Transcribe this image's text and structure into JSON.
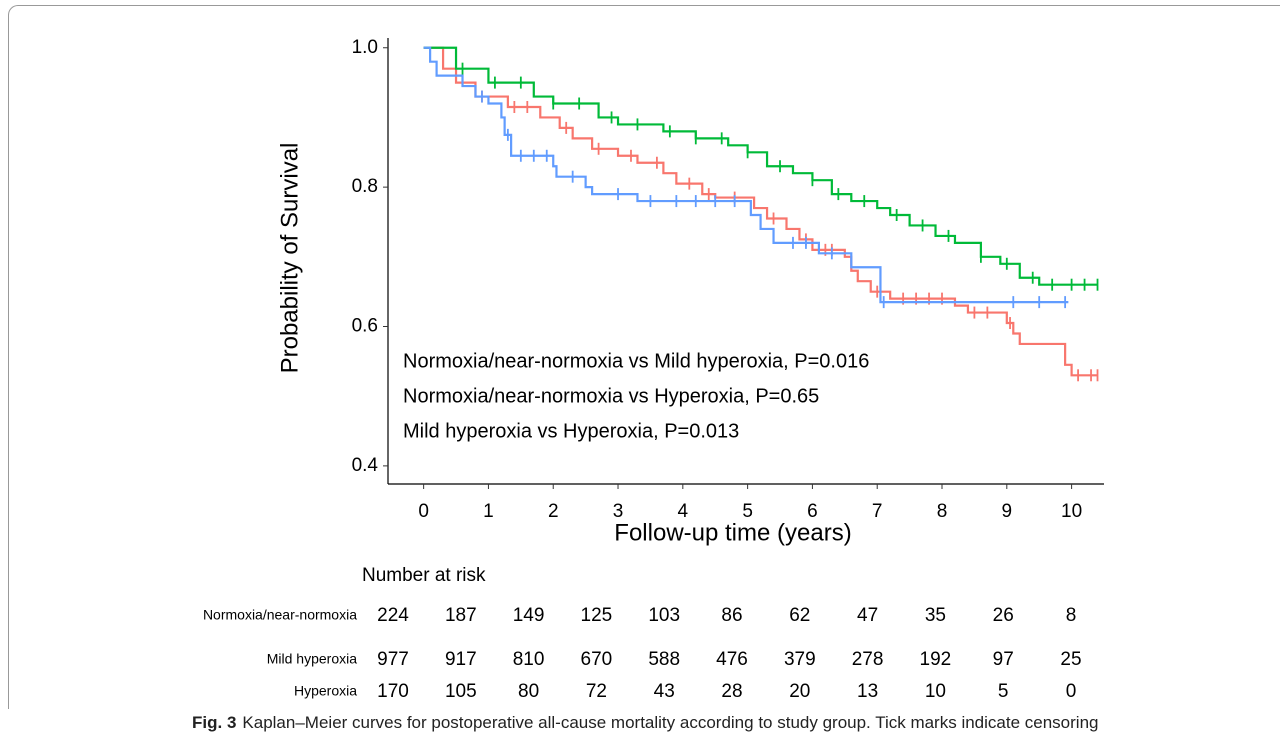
{
  "chart_data": {
    "type": "km",
    "ylabel": "Probability of Survival",
    "xlabel": "Follow-up time (years)",
    "xlim": [
      -0.55,
      10.5
    ],
    "ylim": [
      0.374,
      1.014
    ],
    "xticks": [
      0,
      1,
      2,
      3,
      4,
      5,
      6,
      7,
      8,
      9,
      10
    ],
    "yticks": [
      {
        "value": 1,
        "label": "1.0"
      },
      0.8,
      0.6,
      0.4
    ],
    "annotations": [
      "Normoxia/near-normoxia vs Mild hyperoxia, P=0.016",
      "Normoxia/near-normoxia vs Hyperoxia, P=0.65",
      "Mild hyperoxia vs Hyperoxia, P=0.013"
    ],
    "risk_title": "Number at risk",
    "series": [
      {
        "name": "Normoxia/near-normoxia",
        "color": "#F8766D",
        "x": [
          0,
          0.3,
          0.5,
          0.8,
          1.3,
          1.8,
          2.1,
          2.3,
          2.6,
          3.0,
          3.3,
          3.7,
          3.9,
          4.3,
          4.5,
          5.1,
          5.3,
          5.6,
          5.8,
          6.0,
          6.5,
          6.6,
          6.7,
          6.9,
          7.2,
          8.2,
          8.4,
          9.0,
          9.1,
          9.2,
          9.9,
          10.0,
          10.4
        ],
        "values": [
          1,
          0.97,
          0.95,
          0.93,
          0.915,
          0.9,
          0.885,
          0.87,
          0.855,
          0.845,
          0.835,
          0.82,
          0.805,
          0.79,
          0.785,
          0.77,
          0.755,
          0.74,
          0.725,
          0.71,
          0.7,
          0.68,
          0.665,
          0.65,
          0.64,
          0.63,
          0.62,
          0.605,
          0.59,
          0.575,
          0.545,
          0.53,
          0.53
        ],
        "censored": [
          0.9,
          1.4,
          1.6,
          2.2,
          2.7,
          3.2,
          3.6,
          4.1,
          4.4,
          4.8,
          5.4,
          5.9,
          6.2,
          6.3,
          7.0,
          7.4,
          7.6,
          7.8,
          8.0,
          8.5,
          8.7,
          9.05,
          10.1,
          10.3,
          10.4
        ],
        "at_risk": [
          224,
          187,
          149,
          125,
          103,
          86,
          62,
          47,
          35,
          26,
          8
        ]
      },
      {
        "name": "Mild hyperoxia",
        "color": "#00BA38",
        "x": [
          0,
          0.5,
          1.0,
          1.7,
          2.0,
          2.7,
          3.0,
          3.7,
          4.2,
          4.7,
          5.0,
          5.3,
          5.7,
          6.0,
          6.3,
          6.6,
          7.0,
          7.2,
          7.5,
          7.9,
          8.2,
          8.6,
          8.9,
          9.2,
          9.5,
          10.4
        ],
        "values": [
          1,
          0.97,
          0.95,
          0.93,
          0.92,
          0.9,
          0.89,
          0.88,
          0.87,
          0.86,
          0.85,
          0.83,
          0.82,
          0.81,
          0.79,
          0.78,
          0.77,
          0.76,
          0.745,
          0.73,
          0.72,
          0.7,
          0.69,
          0.67,
          0.66,
          0.66
        ],
        "censored": [
          0.6,
          1.1,
          1.5,
          2.0,
          2.4,
          2.9,
          3.3,
          3.8,
          4.2,
          4.6,
          5.0,
          5.5,
          6.0,
          6.4,
          6.8,
          7.3,
          7.7,
          8.1,
          8.6,
          9.0,
          9.4,
          9.7,
          10.0,
          10.2,
          10.4
        ],
        "at_risk": [
          977,
          917,
          810,
          670,
          588,
          476,
          379,
          278,
          192,
          97,
          25
        ]
      },
      {
        "name": "Hyperoxia",
        "color": "#619CFF",
        "x": [
          0,
          0.1,
          0.2,
          0.6,
          0.8,
          1.0,
          1.2,
          1.25,
          1.35,
          2.0,
          2.05,
          2.5,
          2.6,
          3.3,
          5.0,
          5.05,
          5.2,
          5.4,
          6.1,
          6.6,
          7.05,
          9.95
        ],
        "values": [
          1,
          0.98,
          0.96,
          0.945,
          0.93,
          0.92,
          0.9,
          0.875,
          0.845,
          0.83,
          0.815,
          0.8,
          0.79,
          0.78,
          0.78,
          0.76,
          0.74,
          0.72,
          0.705,
          0.685,
          0.635,
          0.635
        ],
        "censored": [
          0.9,
          1.3,
          1.5,
          1.7,
          1.9,
          2.3,
          3.0,
          3.5,
          3.9,
          4.2,
          4.5,
          4.8,
          5.7,
          5.9,
          6.3,
          7.1,
          9.1,
          9.5,
          9.9
        ],
        "at_risk": [
          170,
          105,
          80,
          72,
          43,
          28,
          20,
          13,
          10,
          5,
          0
        ]
      }
    ]
  },
  "caption": {
    "label": "Fig. 3",
    "text": "Kaplan–Meier curves for postoperative all-cause mortality according to study group. Tick marks indicate censoring"
  }
}
